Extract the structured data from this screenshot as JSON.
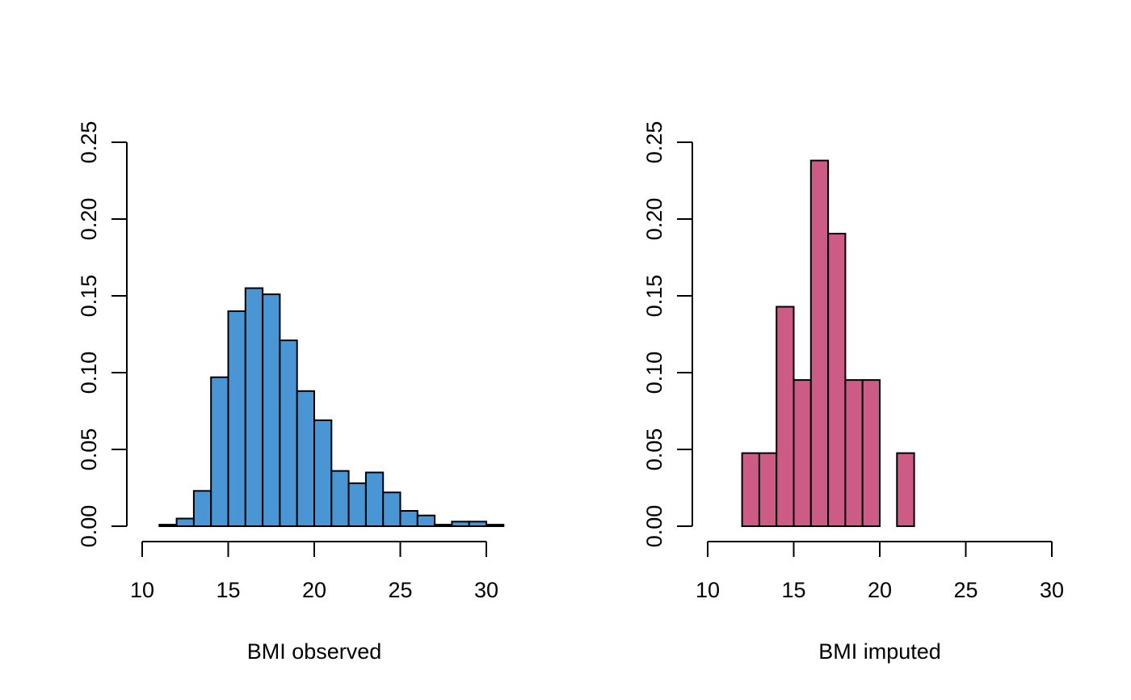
{
  "chart_data": [
    {
      "type": "bar",
      "subtype": "histogram",
      "title": "",
      "xlabel": "BMI observed",
      "ylabel": "",
      "xlim": [
        10,
        30
      ],
      "ylim": [
        0,
        0.25
      ],
      "x_ticks": [
        "10",
        "15",
        "20",
        "25",
        "30"
      ],
      "y_ticks": [
        "0.00",
        "0.05",
        "0.10",
        "0.15",
        "0.20",
        "0.25"
      ],
      "grid": false,
      "legend": "none",
      "color": "#4A96D4",
      "bins": [
        {
          "x0": 11,
          "x1": 12,
          "value": 0.001
        },
        {
          "x0": 12,
          "x1": 13,
          "value": 0.005
        },
        {
          "x0": 13,
          "x1": 14,
          "value": 0.023
        },
        {
          "x0": 14,
          "x1": 15,
          "value": 0.097
        },
        {
          "x0": 15,
          "x1": 16,
          "value": 0.14
        },
        {
          "x0": 16,
          "x1": 17,
          "value": 0.155
        },
        {
          "x0": 17,
          "x1": 18,
          "value": 0.151
        },
        {
          "x0": 18,
          "x1": 19,
          "value": 0.121
        },
        {
          "x0": 19,
          "x1": 20,
          "value": 0.088
        },
        {
          "x0": 20,
          "x1": 21,
          "value": 0.069
        },
        {
          "x0": 21,
          "x1": 22,
          "value": 0.036
        },
        {
          "x0": 22,
          "x1": 23,
          "value": 0.028
        },
        {
          "x0": 23,
          "x1": 24,
          "value": 0.035
        },
        {
          "x0": 24,
          "x1": 25,
          "value": 0.022
        },
        {
          "x0": 25,
          "x1": 26,
          "value": 0.01
        },
        {
          "x0": 26,
          "x1": 27,
          "value": 0.007
        },
        {
          "x0": 27,
          "x1": 28,
          "value": 0.001
        },
        {
          "x0": 28,
          "x1": 29,
          "value": 0.003
        },
        {
          "x0": 29,
          "x1": 30,
          "value": 0.003
        },
        {
          "x0": 30,
          "x1": 31,
          "value": 0.001
        }
      ]
    },
    {
      "type": "bar",
      "subtype": "histogram",
      "title": "",
      "xlabel": "BMI imputed",
      "ylabel": "",
      "xlim": [
        10,
        30
      ],
      "ylim": [
        0,
        0.25
      ],
      "x_ticks": [
        "10",
        "15",
        "20",
        "25",
        "30"
      ],
      "y_ticks": [
        "0.00",
        "0.05",
        "0.10",
        "0.15",
        "0.20",
        "0.25"
      ],
      "grid": false,
      "legend": "none",
      "color": "#CC5C86",
      "bins": [
        {
          "x0": 12,
          "x1": 13,
          "value": 0.0476
        },
        {
          "x0": 13,
          "x1": 14,
          "value": 0.0476
        },
        {
          "x0": 14,
          "x1": 15,
          "value": 0.1429
        },
        {
          "x0": 15,
          "x1": 16,
          "value": 0.0952
        },
        {
          "x0": 16,
          "x1": 17,
          "value": 0.2381
        },
        {
          "x0": 17,
          "x1": 18,
          "value": 0.1905
        },
        {
          "x0": 18,
          "x1": 19,
          "value": 0.0952
        },
        {
          "x0": 19,
          "x1": 20,
          "value": 0.0952
        },
        {
          "x0": 20,
          "x1": 21,
          "value": 0
        },
        {
          "x0": 21,
          "x1": 22,
          "value": 0.0476
        }
      ]
    }
  ]
}
